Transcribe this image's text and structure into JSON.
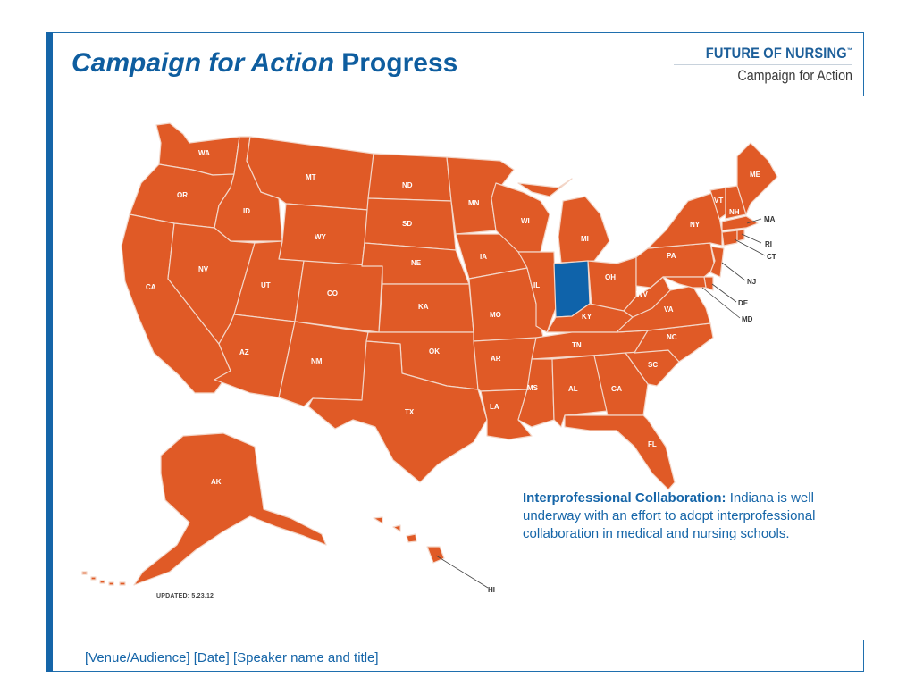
{
  "header": {
    "title_italic": "Campaign for Action",
    "title_regular": "Progress"
  },
  "logo": {
    "line1": "FUTURE OF NURSING",
    "trademark": "™",
    "line2": "Campaign for Action"
  },
  "map": {
    "colors": {
      "default": "#e05a26",
      "highlight": "#0f63aa",
      "border": "#f3d6c8"
    },
    "highlighted_state": "IN",
    "states": [
      "WA",
      "OR",
      "CA",
      "ID",
      "NV",
      "MT",
      "WY",
      "UT",
      "AZ",
      "CO",
      "NM",
      "ND",
      "SD",
      "NE",
      "KA",
      "OK",
      "TX",
      "MN",
      "IA",
      "MO",
      "AR",
      "LA",
      "WI",
      "IL",
      "MI",
      "IN",
      "OH",
      "KY",
      "TN",
      "MS",
      "AL",
      "GA",
      "FL",
      "SC",
      "NC",
      "VA",
      "WV",
      "PA",
      "NY",
      "VT",
      "NH",
      "ME",
      "MA",
      "RI",
      "CT",
      "NJ",
      "DE",
      "MD",
      "AK",
      "HI"
    ],
    "updated": "UPDATED: 5.23.12"
  },
  "caption": {
    "heading": "Interprofessional Collaboration:",
    "body": " Indiana is well underway with an effort to adopt interprofessional collaboration in medical and nursing schools."
  },
  "footer": {
    "text": "[Venue/Audience] [Date] [Speaker name and title]"
  }
}
